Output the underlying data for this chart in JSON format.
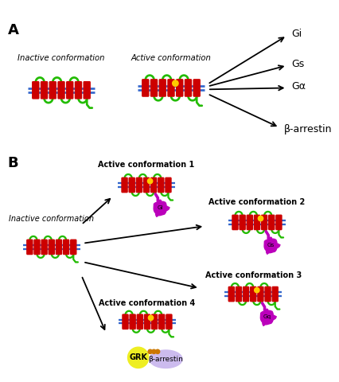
{
  "bg_color": "#ffffff",
  "helix_color": "#cc0000",
  "loop_color": "#22bb00",
  "membrane_color": "#3366cc",
  "ligand_color": "#ffcc00",
  "gprotein_color": "#bb00bb",
  "grk_color": "#eeee22",
  "barr_color": "#ccbbee",
  "connector_color": "#cc7700",
  "text_color": "#000000",
  "label_A": "A",
  "label_B": "B",
  "inactive_label": "Inactive conformation",
  "active_label": "Active conformation",
  "active1_label": "Active conformation 1",
  "active2_label": "Active conformation 2",
  "active3_label": "Active conformation 3",
  "active4_label": "Active conformation 4",
  "Gi_label": "Gi",
  "Gs_label": "Gs",
  "Ga_label": "Gα",
  "barr_label": "β-arrestin",
  "grk_label": "GRK",
  "barr2_label": "β-arrestin",
  "Gi2_label": "Gi",
  "Gs2_label": "Gs",
  "Gq_label": "Gq"
}
